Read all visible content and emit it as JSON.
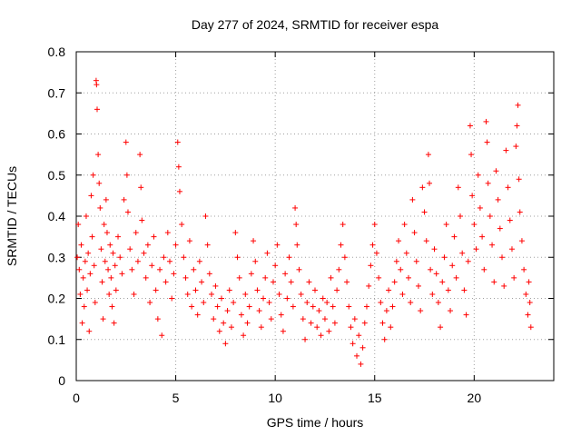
{
  "chart_data": {
    "type": "scatter",
    "title": "Day 277 of 2024, SRMTID for receiver espa",
    "xlabel": "GPS time / hours",
    "ylabel": "SRMTID / TECUs",
    "xlim": [
      0,
      24
    ],
    "ylim": [
      0,
      0.8
    ],
    "xticks": [
      0,
      5,
      10,
      15,
      20
    ],
    "yticks": [
      0,
      0.1,
      0.2,
      0.3,
      0.4,
      0.5,
      0.6,
      0.7,
      0.8
    ],
    "xtick_labels": [
      "0",
      "5",
      "10",
      "15",
      "20"
    ],
    "ytick_labels": [
      "0",
      "0.1",
      "0.2",
      "0.3",
      "0.4",
      "0.5",
      "0.6",
      "0.7",
      "0.8"
    ],
    "grid": true,
    "marker": "+",
    "color": "#ff0000",
    "series": [
      {
        "name": "SRMTID",
        "points": [
          [
            0.05,
            0.3
          ],
          [
            0.1,
            0.38
          ],
          [
            0.15,
            0.27
          ],
          [
            0.2,
            0.21
          ],
          [
            0.25,
            0.33
          ],
          [
            0.3,
            0.14
          ],
          [
            0.35,
            0.25
          ],
          [
            0.4,
            0.18
          ],
          [
            0.45,
            0.29
          ],
          [
            0.5,
            0.4
          ],
          [
            0.55,
            0.22
          ],
          [
            0.6,
            0.31
          ],
          [
            0.65,
            0.12
          ],
          [
            0.7,
            0.26
          ],
          [
            0.75,
            0.45
          ],
          [
            0.8,
            0.35
          ],
          [
            0.85,
            0.5
          ],
          [
            0.9,
            0.28
          ],
          [
            0.95,
            0.19
          ],
          [
            1.0,
            0.73
          ],
          [
            1.02,
            0.72
          ],
          [
            1.05,
            0.66
          ],
          [
            1.1,
            0.55
          ],
          [
            1.15,
            0.48
          ],
          [
            1.2,
            0.42
          ],
          [
            1.25,
            0.32
          ],
          [
            1.3,
            0.24
          ],
          [
            1.35,
            0.15
          ],
          [
            1.4,
            0.38
          ],
          [
            1.45,
            0.29
          ],
          [
            1.5,
            0.44
          ],
          [
            1.55,
            0.36
          ],
          [
            1.6,
            0.27
          ],
          [
            1.65,
            0.21
          ],
          [
            1.7,
            0.33
          ],
          [
            1.75,
            0.25
          ],
          [
            1.8,
            0.18
          ],
          [
            1.85,
            0.31
          ],
          [
            1.9,
            0.14
          ],
          [
            1.95,
            0.28
          ],
          [
            2.0,
            0.22
          ],
          [
            2.1,
            0.35
          ],
          [
            2.2,
            0.3
          ],
          [
            2.3,
            0.26
          ],
          [
            2.4,
            0.44
          ],
          [
            2.5,
            0.58
          ],
          [
            2.55,
            0.5
          ],
          [
            2.6,
            0.41
          ],
          [
            2.7,
            0.32
          ],
          [
            2.8,
            0.27
          ],
          [
            2.9,
            0.21
          ],
          [
            3.0,
            0.36
          ],
          [
            3.1,
            0.29
          ],
          [
            3.2,
            0.55
          ],
          [
            3.25,
            0.47
          ],
          [
            3.3,
            0.39
          ],
          [
            3.4,
            0.31
          ],
          [
            3.5,
            0.25
          ],
          [
            3.6,
            0.33
          ],
          [
            3.7,
            0.19
          ],
          [
            3.8,
            0.28
          ],
          [
            3.9,
            0.35
          ],
          [
            4.0,
            0.22
          ],
          [
            4.1,
            0.15
          ],
          [
            4.2,
            0.27
          ],
          [
            4.3,
            0.11
          ],
          [
            4.4,
            0.3
          ],
          [
            4.5,
            0.24
          ],
          [
            4.6,
            0.36
          ],
          [
            4.7,
            0.29
          ],
          [
            4.8,
            0.2
          ],
          [
            4.9,
            0.26
          ],
          [
            5.0,
            0.33
          ],
          [
            5.1,
            0.58
          ],
          [
            5.15,
            0.52
          ],
          [
            5.2,
            0.46
          ],
          [
            5.3,
            0.38
          ],
          [
            5.4,
            0.3
          ],
          [
            5.5,
            0.25
          ],
          [
            5.6,
            0.21
          ],
          [
            5.7,
            0.34
          ],
          [
            5.8,
            0.18
          ],
          [
            5.9,
            0.27
          ],
          [
            6.0,
            0.22
          ],
          [
            6.1,
            0.16
          ],
          [
            6.2,
            0.29
          ],
          [
            6.3,
            0.24
          ],
          [
            6.4,
            0.19
          ],
          [
            6.5,
            0.4
          ],
          [
            6.6,
            0.33
          ],
          [
            6.7,
            0.26
          ],
          [
            6.8,
            0.21
          ],
          [
            6.9,
            0.15
          ],
          [
            7.0,
            0.23
          ],
          [
            7.1,
            0.18
          ],
          [
            7.2,
            0.12
          ],
          [
            7.3,
            0.2
          ],
          [
            7.4,
            0.14
          ],
          [
            7.5,
            0.09
          ],
          [
            7.6,
            0.17
          ],
          [
            7.7,
            0.22
          ],
          [
            7.8,
            0.13
          ],
          [
            7.9,
            0.19
          ],
          [
            8.0,
            0.36
          ],
          [
            8.1,
            0.3
          ],
          [
            8.2,
            0.25
          ],
          [
            8.3,
            0.16
          ],
          [
            8.4,
            0.11
          ],
          [
            8.5,
            0.21
          ],
          [
            8.6,
            0.14
          ],
          [
            8.7,
            0.18
          ],
          [
            8.8,
            0.26
          ],
          [
            8.9,
            0.34
          ],
          [
            9.0,
            0.29
          ],
          [
            9.1,
            0.22
          ],
          [
            9.2,
            0.17
          ],
          [
            9.3,
            0.13
          ],
          [
            9.4,
            0.2
          ],
          [
            9.5,
            0.25
          ],
          [
            9.6,
            0.31
          ],
          [
            9.7,
            0.19
          ],
          [
            9.8,
            0.15
          ],
          [
            9.9,
            0.24
          ],
          [
            10.0,
            0.28
          ],
          [
            10.1,
            0.33
          ],
          [
            10.2,
            0.21
          ],
          [
            10.3,
            0.16
          ],
          [
            10.4,
            0.12
          ],
          [
            10.5,
            0.26
          ],
          [
            10.6,
            0.2
          ],
          [
            10.7,
            0.3
          ],
          [
            10.8,
            0.24
          ],
          [
            10.9,
            0.18
          ],
          [
            11.0,
            0.42
          ],
          [
            11.05,
            0.38
          ],
          [
            11.1,
            0.33
          ],
          [
            11.2,
            0.27
          ],
          [
            11.3,
            0.21
          ],
          [
            11.4,
            0.15
          ],
          [
            11.5,
            0.1
          ],
          [
            11.6,
            0.19
          ],
          [
            11.7,
            0.24
          ],
          [
            11.8,
            0.14
          ],
          [
            11.9,
            0.18
          ],
          [
            12.0,
            0.22
          ],
          [
            12.1,
            0.13
          ],
          [
            12.2,
            0.17
          ],
          [
            12.3,
            0.11
          ],
          [
            12.4,
            0.2
          ],
          [
            12.5,
            0.15
          ],
          [
            12.6,
            0.19
          ],
          [
            12.7,
            0.12
          ],
          [
            12.8,
            0.25
          ],
          [
            12.9,
            0.18
          ],
          [
            13.0,
            0.14
          ],
          [
            13.1,
            0.22
          ],
          [
            13.2,
            0.27
          ],
          [
            13.3,
            0.33
          ],
          [
            13.4,
            0.38
          ],
          [
            13.5,
            0.3
          ],
          [
            13.6,
            0.24
          ],
          [
            13.7,
            0.18
          ],
          [
            13.8,
            0.13
          ],
          [
            13.9,
            0.09
          ],
          [
            14.0,
            0.15
          ],
          [
            14.1,
            0.06
          ],
          [
            14.2,
            0.11
          ],
          [
            14.3,
            0.04
          ],
          [
            14.4,
            0.08
          ],
          [
            14.5,
            0.14
          ],
          [
            14.6,
            0.18
          ],
          [
            14.7,
            0.23
          ],
          [
            14.8,
            0.28
          ],
          [
            14.9,
            0.33
          ],
          [
            15.0,
            0.38
          ],
          [
            15.1,
            0.31
          ],
          [
            15.2,
            0.25
          ],
          [
            15.3,
            0.19
          ],
          [
            15.4,
            0.14
          ],
          [
            15.5,
            0.1
          ],
          [
            15.6,
            0.17
          ],
          [
            15.7,
            0.22
          ],
          [
            15.8,
            0.13
          ],
          [
            15.9,
            0.18
          ],
          [
            16.0,
            0.24
          ],
          [
            16.1,
            0.29
          ],
          [
            16.2,
            0.34
          ],
          [
            16.3,
            0.27
          ],
          [
            16.4,
            0.21
          ],
          [
            16.5,
            0.38
          ],
          [
            16.6,
            0.31
          ],
          [
            16.7,
            0.25
          ],
          [
            16.8,
            0.19
          ],
          [
            16.9,
            0.44
          ],
          [
            17.0,
            0.36
          ],
          [
            17.1,
            0.29
          ],
          [
            17.2,
            0.23
          ],
          [
            17.3,
            0.17
          ],
          [
            17.4,
            0.47
          ],
          [
            17.5,
            0.41
          ],
          [
            17.6,
            0.34
          ],
          [
            17.7,
            0.55
          ],
          [
            17.75,
            0.48
          ],
          [
            17.8,
            0.27
          ],
          [
            17.9,
            0.21
          ],
          [
            18.0,
            0.32
          ],
          [
            18.1,
            0.26
          ],
          [
            18.2,
            0.19
          ],
          [
            18.3,
            0.13
          ],
          [
            18.4,
            0.24
          ],
          [
            18.5,
            0.3
          ],
          [
            18.6,
            0.38
          ],
          [
            18.7,
            0.22
          ],
          [
            18.8,
            0.17
          ],
          [
            18.9,
            0.28
          ],
          [
            19.0,
            0.35
          ],
          [
            19.1,
            0.25
          ],
          [
            19.2,
            0.47
          ],
          [
            19.3,
            0.4
          ],
          [
            19.4,
            0.31
          ],
          [
            19.5,
            0.22
          ],
          [
            19.6,
            0.16
          ],
          [
            19.7,
            0.29
          ],
          [
            19.8,
            0.62
          ],
          [
            19.85,
            0.55
          ],
          [
            19.9,
            0.45
          ],
          [
            20.0,
            0.38
          ],
          [
            20.1,
            0.32
          ],
          [
            20.2,
            0.5
          ],
          [
            20.3,
            0.42
          ],
          [
            20.4,
            0.35
          ],
          [
            20.5,
            0.27
          ],
          [
            20.6,
            0.63
          ],
          [
            20.65,
            0.58
          ],
          [
            20.7,
            0.48
          ],
          [
            20.8,
            0.4
          ],
          [
            20.9,
            0.33
          ],
          [
            21.0,
            0.24
          ],
          [
            21.1,
            0.51
          ],
          [
            21.2,
            0.44
          ],
          [
            21.3,
            0.37
          ],
          [
            21.4,
            0.3
          ],
          [
            21.5,
            0.23
          ],
          [
            21.6,
            0.56
          ],
          [
            21.7,
            0.47
          ],
          [
            21.8,
            0.39
          ],
          [
            21.9,
            0.32
          ],
          [
            22.0,
            0.25
          ],
          [
            22.1,
            0.57
          ],
          [
            22.15,
            0.62
          ],
          [
            22.2,
            0.67
          ],
          [
            22.25,
            0.49
          ],
          [
            22.3,
            0.41
          ],
          [
            22.4,
            0.34
          ],
          [
            22.5,
            0.27
          ],
          [
            22.6,
            0.21
          ],
          [
            22.7,
            0.16
          ],
          [
            22.75,
            0.24
          ],
          [
            22.8,
            0.19
          ],
          [
            22.85,
            0.13
          ]
        ]
      }
    ]
  }
}
